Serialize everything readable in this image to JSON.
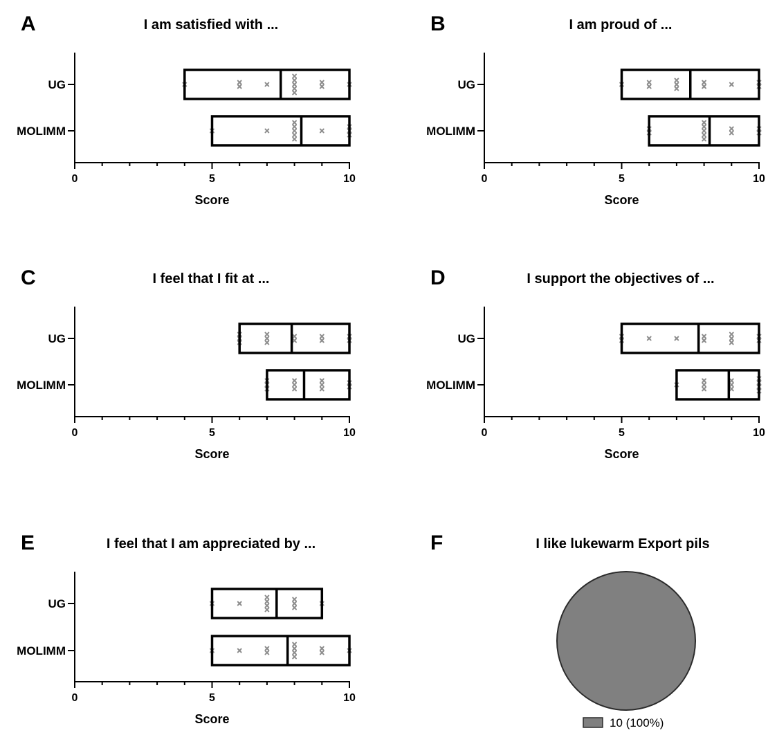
{
  "chart_data": [
    {
      "type": "box",
      "panel": "A",
      "title": "I am satisfied with ...",
      "xlabel": "Score",
      "xlim": [
        0,
        10
      ],
      "xticks": [
        0,
        5,
        10
      ],
      "categories": [
        "UG",
        "MOLIMM"
      ],
      "boxes": [
        {
          "group": "UG",
          "min": 4,
          "q1": 4,
          "median": 7.5,
          "q3": 10,
          "max": 10,
          "points": [
            4,
            6,
            6,
            7,
            8,
            8,
            8,
            8,
            8,
            9,
            9,
            10
          ]
        },
        {
          "group": "MOLIMM",
          "min": 5,
          "q1": 5,
          "median": 8.25,
          "q3": 10,
          "max": 10,
          "points": [
            5,
            7,
            8,
            8,
            8,
            8,
            8,
            9,
            10,
            10,
            10
          ]
        }
      ]
    },
    {
      "type": "box",
      "panel": "B",
      "title": "I am proud of ...",
      "xlabel": "Score",
      "xlim": [
        0,
        10
      ],
      "xticks": [
        0,
        5,
        10
      ],
      "categories": [
        "UG",
        "MOLIMM"
      ],
      "boxes": [
        {
          "group": "UG",
          "min": 5,
          "q1": 5,
          "median": 7.5,
          "q3": 10,
          "max": 10,
          "points": [
            5,
            6,
            6,
            7,
            7,
            7,
            8,
            8,
            9,
            10,
            10
          ]
        },
        {
          "group": "MOLIMM",
          "min": 6,
          "q1": 6,
          "median": 8.2,
          "q3": 10,
          "max": 10,
          "points": [
            6,
            6,
            8,
            8,
            8,
            8,
            8,
            9,
            9,
            10,
            10
          ]
        }
      ]
    },
    {
      "type": "box",
      "panel": "C",
      "title": "I feel that I fit at ...",
      "xlabel": "Score",
      "xlim": [
        0,
        10
      ],
      "xticks": [
        0,
        5,
        10
      ],
      "categories": [
        "UG",
        "MOLIMM"
      ],
      "boxes": [
        {
          "group": "UG",
          "min": 6,
          "q1": 6,
          "median": 7.9,
          "q3": 10,
          "max": 10,
          "points": [
            6,
            6,
            6,
            7,
            7,
            7,
            8,
            8,
            9,
            9,
            10,
            10
          ]
        },
        {
          "group": "MOLIMM",
          "min": 7,
          "q1": 7,
          "median": 8.35,
          "q3": 10,
          "max": 10,
          "points": [
            7,
            7,
            7,
            8,
            8,
            8,
            9,
            9,
            9,
            10,
            10
          ]
        }
      ]
    },
    {
      "type": "box",
      "panel": "D",
      "title": "I support the objectives of ...",
      "xlabel": "Score",
      "xlim": [
        0,
        10
      ],
      "xticks": [
        0,
        5,
        10
      ],
      "categories": [
        "UG",
        "MOLIMM"
      ],
      "boxes": [
        {
          "group": "UG",
          "min": 5,
          "q1": 5,
          "median": 7.8,
          "q3": 10,
          "max": 10,
          "points": [
            5,
            5,
            6,
            7,
            8,
            8,
            9,
            9,
            9,
            10,
            10
          ]
        },
        {
          "group": "MOLIMM",
          "min": 7,
          "q1": 7,
          "median": 8.9,
          "q3": 10,
          "max": 10,
          "points": [
            7,
            8,
            8,
            8,
            9,
            9,
            9,
            10,
            10,
            10,
            10
          ]
        }
      ]
    },
    {
      "type": "box",
      "panel": "E",
      "title": "I feel that I am appreciated by ...",
      "xlabel": "Score",
      "xlim": [
        0,
        10
      ],
      "xticks": [
        0,
        5,
        10
      ],
      "categories": [
        "UG",
        "MOLIMM"
      ],
      "boxes": [
        {
          "group": "UG",
          "min": 5,
          "q1": 5,
          "median": 7.35,
          "q3": 9,
          "max": 9,
          "points": [
            5,
            6,
            7,
            7,
            7,
            7,
            8,
            8,
            8,
            9
          ]
        },
        {
          "group": "MOLIMM",
          "min": 5,
          "q1": 5,
          "median": 7.75,
          "q3": 10,
          "max": 10,
          "points": [
            5,
            6,
            7,
            7,
            8,
            8,
            8,
            8,
            9,
            9,
            10
          ]
        }
      ]
    },
    {
      "type": "pie",
      "panel": "F",
      "title": "I like lukewarm Export pils",
      "slices": [
        {
          "label": "10 (100%)",
          "value": 10,
          "color": "#808080"
        }
      ],
      "legend_position": "bottom"
    }
  ],
  "colors": {
    "box_stroke": "#000000",
    "point_fill": "#8c8c8c",
    "pie_fill": "#808080",
    "pie_stroke": "#2b2b2b"
  }
}
